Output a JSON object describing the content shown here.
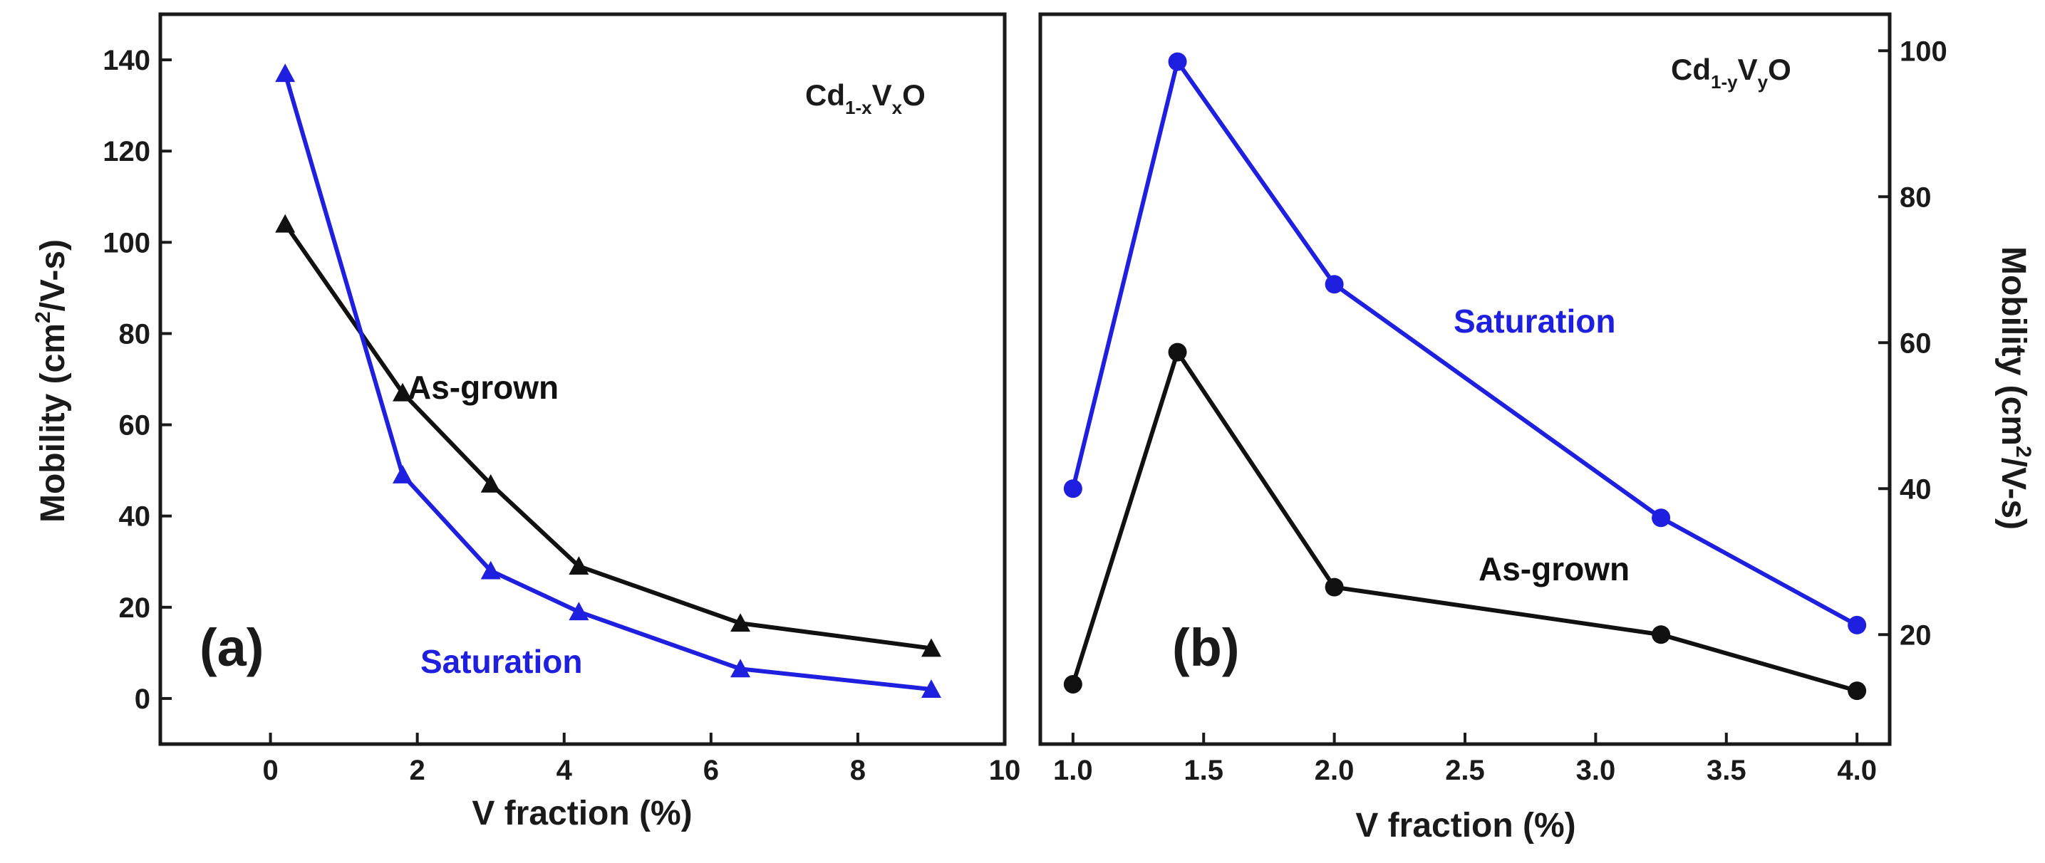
{
  "colors": {
    "as_grown": "#111111",
    "saturation": "#1f1fe0",
    "axis": "#1a1a1a"
  },
  "chart_data": [
    {
      "type": "line",
      "panel_label": "(a)",
      "formula": {
        "base1": "Cd",
        "sub1": "1-x",
        "base2": "V",
        "sub2": "x",
        "base3": "O"
      },
      "xlabel": "V fraction (%)",
      "ylabel": {
        "text": "Mobility (cm",
        "sup": "2",
        "tail": "/V-s)"
      },
      "xlim": [
        -1.5,
        10
      ],
      "ylim": [
        -10,
        150
      ],
      "xticks": [
        0,
        2,
        4,
        6,
        8,
        10
      ],
      "yticks": [
        0,
        20,
        40,
        60,
        80,
        100,
        120,
        140
      ],
      "marker": "triangle",
      "series": [
        {
          "name": "As-grown",
          "color": "#111111",
          "x": [
            0.2,
            1.8,
            3.0,
            4.2,
            6.4,
            9.0
          ],
          "y": [
            104,
            67,
            47,
            29,
            16.5,
            11
          ]
        },
        {
          "name": "Saturation",
          "color": "#1f1fe0",
          "x": [
            0.2,
            1.8,
            3.0,
            4.2,
            6.4,
            9.0
          ],
          "y": [
            137,
            49,
            28,
            19,
            6.5,
            2
          ]
        }
      ],
      "annotations": [
        {
          "text": "As-grown",
          "series": "As-grown"
        },
        {
          "text": "Saturation",
          "series": "Saturation"
        }
      ]
    },
    {
      "type": "line",
      "panel_label": "(b)",
      "formula": {
        "base1": "Cd",
        "sub1": "1-y",
        "base2": "V",
        "sub2": "y",
        "base3": "O"
      },
      "xlabel": "V fraction (%)",
      "ylabel": {
        "text": "Mobility (cm",
        "sup": "2",
        "tail": "/V-s)"
      },
      "y_axis_side": "right",
      "xlim": [
        0.875,
        4.125
      ],
      "ylim": [
        5,
        105
      ],
      "xticks": [
        "1.0",
        "1.5",
        "2.0",
        "2.5",
        "3.0",
        "3.5",
        "4.0"
      ],
      "yticks": [
        20,
        40,
        60,
        80,
        100
      ],
      "marker": "circle",
      "series": [
        {
          "name": "Saturation",
          "color": "#1f1fe0",
          "x": [
            1.0,
            1.4,
            2.0,
            3.25,
            4.0
          ],
          "y": [
            40,
            98.5,
            68,
            36,
            21.3
          ]
        },
        {
          "name": "As-grown",
          "color": "#111111",
          "x": [
            1.0,
            1.4,
            2.0,
            3.25,
            4.0
          ],
          "y": [
            13.2,
            58.7,
            26.5,
            20,
            12.3
          ]
        }
      ],
      "annotations": [
        {
          "text": "Saturation",
          "series": "Saturation"
        },
        {
          "text": "As-grown",
          "series": "As-grown"
        }
      ]
    }
  ]
}
